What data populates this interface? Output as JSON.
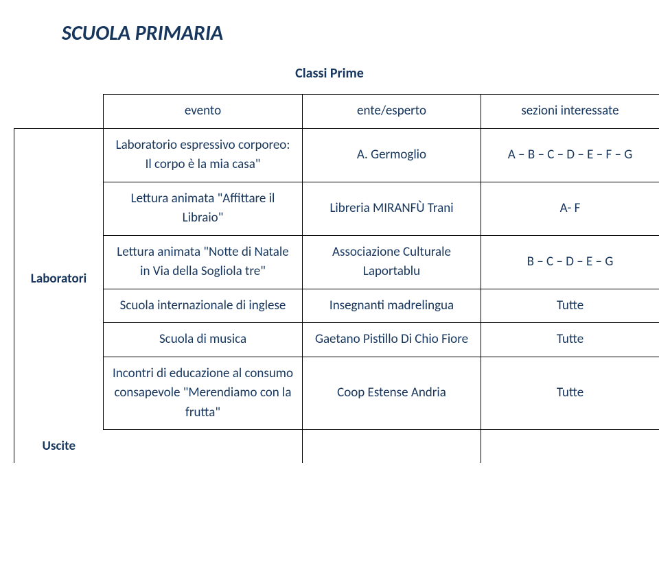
{
  "page": {
    "title": "SCUOLA PRIMARIA",
    "subtitle": "Classi Prime",
    "title_color": "#17365d",
    "subtitle_color": "#17365d"
  },
  "table": {
    "headers": {
      "col1": "evento",
      "col2": "ente/esperto",
      "col3": "sezioni interessate"
    },
    "rowLabels": {
      "laboratori": "Laboratori",
      "uscite": "Uscite"
    },
    "rows": [
      {
        "evento": "Laboratorio espressivo corporeo: Il corpo è la mia casa\"",
        "ente": "A. Germoglio",
        "sezioni": "A – B – C – D – E – F – G"
      },
      {
        "evento": "Lettura animata \"Affittare il Libraio\"",
        "ente": "Libreria MIRANFÙ Trani",
        "sezioni": "A- F"
      },
      {
        "evento": "Lettura animata \"Notte di Natale in Via della Sogliola tre\"",
        "ente": "Associazione Culturale Laportablu",
        "sezioni": "B – C – D – E – G"
      },
      {
        "evento": "Scuola internazionale di inglese",
        "ente": "Insegnanti madrelingua",
        "sezioni": "Tutte"
      },
      {
        "evento": "Scuola di musica",
        "ente": "Gaetano Pistillo Di Chio Fiore",
        "sezioni": "Tutte"
      },
      {
        "evento": "Incontri di educazione al consumo consapevole \"Merendiamo con la frutta\"",
        "ente": "Coop Estense Andria",
        "sezioni": "Tutte"
      }
    ]
  },
  "colors": {
    "text": "#17365d",
    "border": "#000000",
    "background": "#ffffff"
  }
}
